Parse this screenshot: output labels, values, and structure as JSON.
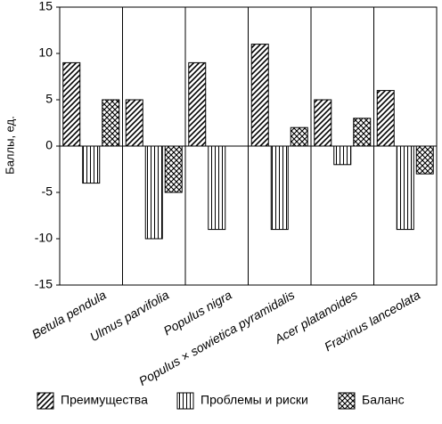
{
  "chart_data": {
    "type": "bar",
    "ylabel": "Баллы, ед.",
    "ylim": [
      -15,
      15
    ],
    "yticks": [
      15,
      10,
      5,
      0,
      -5,
      -10,
      -15
    ],
    "grid": "vertical lines between categories",
    "legend_position": "bottom",
    "categories": [
      "Betula pendula",
      "Ulmus parvifolia",
      "Populus nigra",
      "Populus × sowietica pyramidalis",
      "Acer platanoides",
      "Fraxinus lanceolata"
    ],
    "series": [
      {
        "name": "Преимущества",
        "pattern": "diagonal-hatch",
        "values": [
          9,
          5,
          9,
          11,
          5,
          6
        ]
      },
      {
        "name": "Проблемы и риски",
        "pattern": "vertical-lines",
        "values": [
          -4,
          -10,
          -9,
          -9,
          -2,
          -9
        ]
      },
      {
        "name": "Баланс",
        "pattern": "cross-diagonal-hatch",
        "values": [
          5,
          -5,
          0,
          2,
          3,
          -3
        ]
      }
    ],
    "colors": {
      "stroke": "#000000",
      "background": "#ffffff",
      "grid": "#000000"
    }
  }
}
